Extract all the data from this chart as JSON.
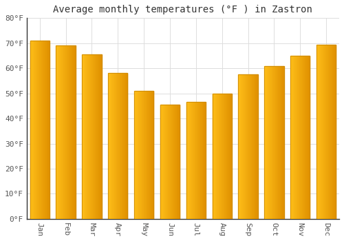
{
  "title": "Average monthly temperatures (°F ) in Zastron",
  "months": [
    "Jan",
    "Feb",
    "Mar",
    "Apr",
    "May",
    "Jun",
    "Jul",
    "Aug",
    "Sep",
    "Oct",
    "Nov",
    "Dec"
  ],
  "values": [
    71,
    69,
    65.5,
    58,
    51,
    45.5,
    46.5,
    50,
    57.5,
    61,
    65,
    69.5
  ],
  "bar_color_left": "#FFD966",
  "bar_color_right": "#FFA500",
  "bar_color_mid": "#FFBB33",
  "ylim": [
    0,
    80
  ],
  "yticks": [
    0,
    10,
    20,
    30,
    40,
    50,
    60,
    70,
    80
  ],
  "ytick_labels": [
    "0°F",
    "10°F",
    "20°F",
    "30°F",
    "40°F",
    "50°F",
    "60°F",
    "70°F",
    "80°F"
  ],
  "background_color": "#FFFFFF",
  "plot_bg_color": "#FFFFFF",
  "grid_color": "#DDDDDD",
  "title_fontsize": 10,
  "tick_fontsize": 8,
  "bar_width": 0.75,
  "spine_color": "#333333"
}
